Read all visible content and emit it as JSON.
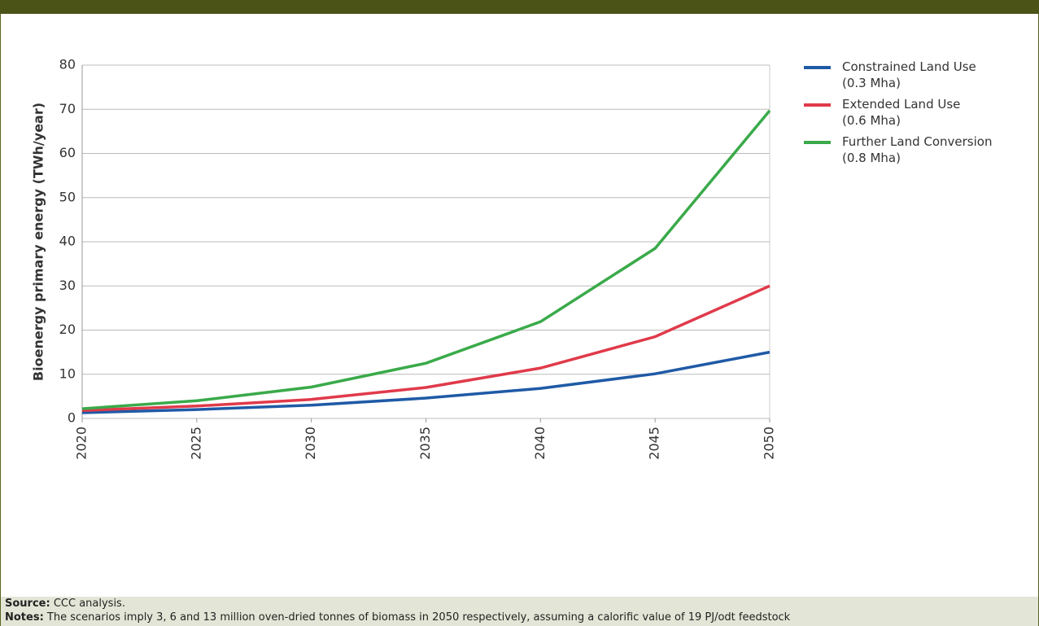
{
  "chart_data": {
    "type": "line",
    "y_label": "Bioenergy primary energy (TWh/year)",
    "x": [
      2020,
      2025,
      2030,
      2035,
      2040,
      2045,
      2050
    ],
    "xlim": [
      2020,
      2050
    ],
    "xticks": [
      2020,
      2025,
      2030,
      2035,
      2040,
      2045,
      2050
    ],
    "ylim": [
      0,
      80
    ],
    "yticks": [
      0,
      10,
      20,
      30,
      40,
      50,
      60,
      70,
      80
    ],
    "grid": true,
    "legend": "right",
    "series": [
      {
        "name": "Constrained Land Use\n(0.3 Mha)",
        "color": "#1f5aa6",
        "values": [
          1.3,
          2.0,
          3.0,
          4.6,
          6.8,
          10.1,
          15.0
        ]
      },
      {
        "name": "Extended Land Use\n(0.6 Mha)",
        "color": "#e03a4a",
        "values": [
          1.8,
          2.8,
          4.3,
          7.0,
          11.4,
          18.5,
          30.0
        ]
      },
      {
        "name": "Further Land Conversion\n(0.8 Mha)",
        "color": "#3aaa4a",
        "values": [
          2.2,
          4.0,
          7.1,
          12.5,
          21.9,
          38.5,
          69.7
        ]
      }
    ]
  },
  "footer": {
    "source_label": "Source:",
    "source_text": "CCC analysis.",
    "notes_label": "Notes:",
    "notes_text": "The scenarios imply 3, 6 and 13 million oven-dried tonnes of biomass in 2050 respectively, assuming a calorific value of 19 PJ/odt feedstock"
  }
}
